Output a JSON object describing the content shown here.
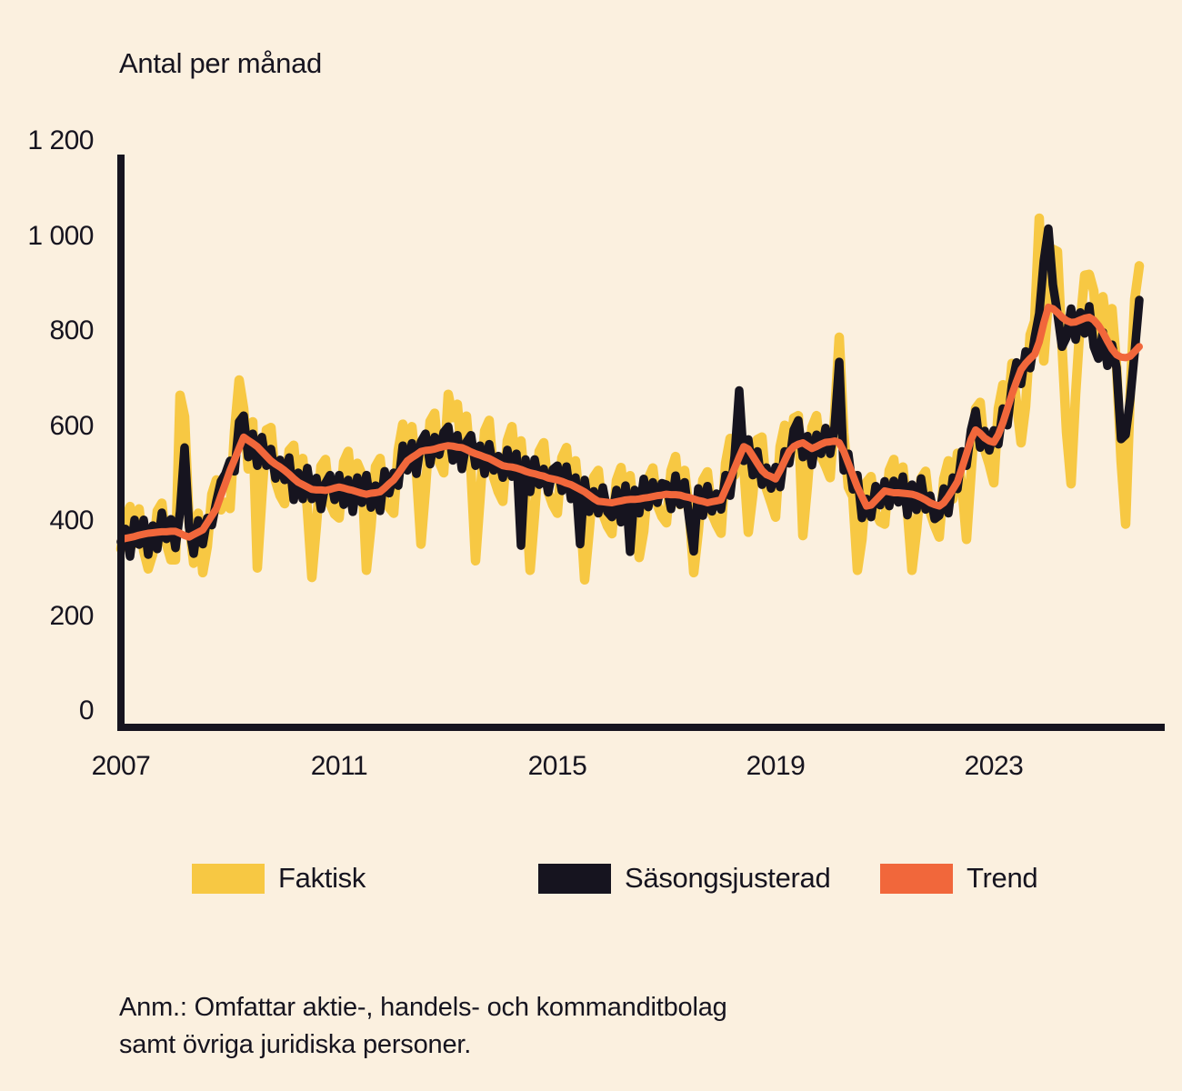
{
  "title": "Antal per månad",
  "footnote": {
    "line1": "Anm.: Omfattar aktie-, handels- och kommanditbolag",
    "line2": "samt övriga juridiska personer."
  },
  "colors": {
    "background": "#FBF0DF",
    "axis": "#16141F",
    "faktisk": "#F7C843",
    "sasongsjusterad": "#16141F",
    "trend": "#F1673B"
  },
  "legend": {
    "items": [
      {
        "label": "Faktisk",
        "color": "#F7C843"
      },
      {
        "label": "Säsongsjusterad",
        "color": "#16141F"
      },
      {
        "label": "Trend",
        "color": "#F1673B"
      }
    ]
  },
  "chart_data": {
    "type": "line",
    "title": "Antal per månad",
    "xlabel": "",
    "ylabel": "Antal per månad",
    "ylim": [
      0,
      1200
    ],
    "grid": false,
    "legend_position": "bottom",
    "x_start": "2007-01",
    "x_end": "2025-09",
    "frequency": "monthly",
    "x_tick_labels": [
      "2007",
      "2011",
      "2015",
      "2019",
      "2023"
    ],
    "x_tick_years": [
      2007,
      2011,
      2015,
      2019,
      2023
    ],
    "y_tick_labels": [
      "0",
      "200",
      "400",
      "600",
      "800",
      "1 000",
      "1 200"
    ],
    "y_tick_values": [
      0,
      200,
      400,
      600,
      800,
      1000,
      1200
    ],
    "series": [
      {
        "name": "Faktisk",
        "key": "faktisk",
        "color": "#F7C843",
        "values": [
          375,
          437,
          464,
          386,
          459,
          371,
          333,
          364,
          455,
          471,
          386,
          352,
          352,
          698,
          653,
          430,
          345,
          450,
          325,
          380,
          490,
          520,
          457,
          473,
          460,
          623,
          730,
          670,
          543,
          642,
          335,
          485,
          625,
          630,
          518,
          487,
          470,
          582,
          593,
          490,
          565,
          460,
          315,
          424,
          549,
          563,
          470,
          448,
          440,
          558,
          580,
          478,
          555,
          532,
          330,
          422,
          548,
          565,
          478,
          462,
          450,
          583,
          637,
          545,
          632,
          538,
          385,
          502,
          643,
          660,
          558,
          535,
          700,
          651,
          679,
          568,
          654,
          539,
          350,
          482,
          623,
          645,
          525,
          495,
          475,
          603,
          632,
          530,
          602,
          493,
          330,
          448,
          580,
          598,
          494,
          467,
          450,
          567,
          588,
          490,
          560,
          460,
          310,
          413,
          526,
          540,
          449,
          423,
          407,
          519,
          546,
          463,
          529,
          444,
          357,
          412,
          523,
          545,
          467,
          443,
          430,
          539,
          569,
          468,
          540,
          453,
          325,
          412,
          520,
          537,
          449,
          426,
          408,
          555,
          607,
          530,
          660,
          550,
          410,
          490,
          605,
          610,
          501,
          472,
          442,
          590,
          635,
          560,
          650,
          655,
          403,
          507,
          631,
          655,
          570,
          549,
          525,
          657,
          820,
          620,
          505,
          485,
          330,
          395,
          515,
          527,
          452,
          432,
          427,
          540,
          563,
          478,
          547,
          456,
          330,
          412,
          523,
          538,
          452,
          423,
          400,
          522,
          560,
          480,
          576,
          505,
          395,
          535,
          670,
          683,
          583,
          552,
          514,
          670,
          720,
          655,
          765,
          682,
          598,
          675,
          825,
          854,
          1070,
          770,
          900,
          1005,
          1000,
          803,
          620,
          512,
          700,
          850,
          950,
          952,
          917,
          785,
          905,
          830,
          880,
          760,
          560,
          427,
          700,
          900,
          970
        ]
      },
      {
        "name": "Säsongsjusterad",
        "key": "sasongsjusterad",
        "color": "#16141F",
        "values": [
          390,
          417,
          359,
          436,
          384,
          436,
          363,
          424,
          375,
          451,
          396,
          437,
          377,
          453,
          588,
          420,
          365,
          435,
          385,
          440,
          425,
          475,
          517,
          533,
          560,
          538,
          642,
          655,
          568,
          617,
          550,
          610,
          550,
          585,
          523,
          562,
          520,
          567,
          478,
          535,
          480,
          545,
          480,
          524,
          459,
          513,
          530,
          478,
          530,
          468,
          520,
          453,
          525,
          472,
          530,
          462,
          508,
          455,
          538,
          492,
          535,
          508,
          592,
          540,
          597,
          533,
          600,
          617,
          553,
          610,
          573,
          620,
          632,
          561,
          614,
          543,
          599,
          614,
          550,
          592,
          533,
          595,
          540,
          570,
          525,
          583,
          527,
          575,
          382,
          563,
          495,
          563,
          510,
          543,
          494,
          542,
          550,
          497,
          548,
          480,
          525,
          385,
          520,
          453,
          496,
          450,
          504,
          453,
          442,
          499,
          431,
          508,
          369,
          499,
          450,
          522,
          463,
          515,
          472,
          513,
          510,
          459,
          529,
          468,
          515,
          438,
          370,
          502,
          445,
          507,
          454,
          491,
          458,
          530,
          487,
          570,
          708,
          560,
          605,
          530,
          580,
          510,
          546,
          502,
          547,
          505,
          580,
          555,
          625,
          645,
          568,
          612,
          551,
          615,
          575,
          629,
          575,
          632,
          768,
          540,
          575,
          500,
          530,
          440,
          480,
          442,
          507,
          467,
          517,
          465,
          518,
          473,
          527,
          446,
          510,
          457,
          523,
          458,
          487,
          438,
          445,
          502,
          450,
          525,
          501,
          580,
          550,
          625,
          665,
          588,
          623,
          582,
          624,
          595,
          670,
          635,
          720,
          767,
          722,
          790,
          755,
          819,
          870,
          980,
          1048,
          930,
          870,
          800,
          820,
          880,
          815,
          872,
          828,
          885,
          800,
          775,
          830,
          760,
          804,
          756,
          606,
          615,
          690,
          790,
          898
        ]
      },
      {
        "name": "Trend",
        "key": "trend",
        "color": "#F1673B",
        "values": [
          395,
          397,
          399,
          401,
          404,
          406,
          408,
          409,
          410,
          411,
          411,
          412,
          412,
          408,
          403,
          400,
          405,
          410,
          415,
          430,
          445,
          460,
          487,
          513,
          540,
          563,
          587,
          610,
          603,
          597,
          590,
          580,
          570,
          560,
          553,
          547,
          540,
          532,
          523,
          515,
          510,
          505,
          500,
          499,
          499,
          498,
          500,
          503,
          505,
          503,
          500,
          498,
          495,
          492,
          490,
          492,
          493,
          495,
          503,
          512,
          520,
          533,
          547,
          560,
          567,
          573,
          580,
          582,
          583,
          585,
          588,
          590,
          592,
          591,
          589,
          588,
          584,
          579,
          575,
          572,
          568,
          565,
          560,
          555,
          550,
          548,
          547,
          545,
          542,
          538,
          535,
          533,
          530,
          528,
          524,
          522,
          520,
          517,
          513,
          510,
          505,
          500,
          495,
          488,
          481,
          475,
          474,
          473,
          472,
          474,
          476,
          478,
          479,
          479,
          480,
          482,
          483,
          485,
          487,
          488,
          490,
          489,
          489,
          488,
          485,
          483,
          480,
          477,
          475,
          472,
          474,
          476,
          478,
          500,
          522,
          545,
          568,
          590,
          585,
          570,
          555,
          540,
          531,
          527,
          522,
          540,
          560,
          580,
          590,
          595,
          598,
          592,
          586,
          590,
          595,
          599,
          600,
          602,
          598,
          580,
          555,
          530,
          505,
          485,
          465,
          467,
          477,
          487,
          497,
          495,
          493,
          493,
          492,
          491,
          490,
          487,
          483,
          478,
          472,
          468,
          465,
          472,
          485,
          500,
          516,
          545,
          575,
          605,
          625,
          618,
          608,
          602,
          599,
          615,
          640,
          670,
          700,
          727,
          752,
          765,
          775,
          784,
          810,
          850,
          883,
          880,
          872,
          862,
          855,
          851,
          852,
          856,
          860,
          862,
          856,
          845,
          830,
          812,
          795,
          783,
          778,
          777,
          780,
          790,
          800
        ]
      }
    ]
  }
}
